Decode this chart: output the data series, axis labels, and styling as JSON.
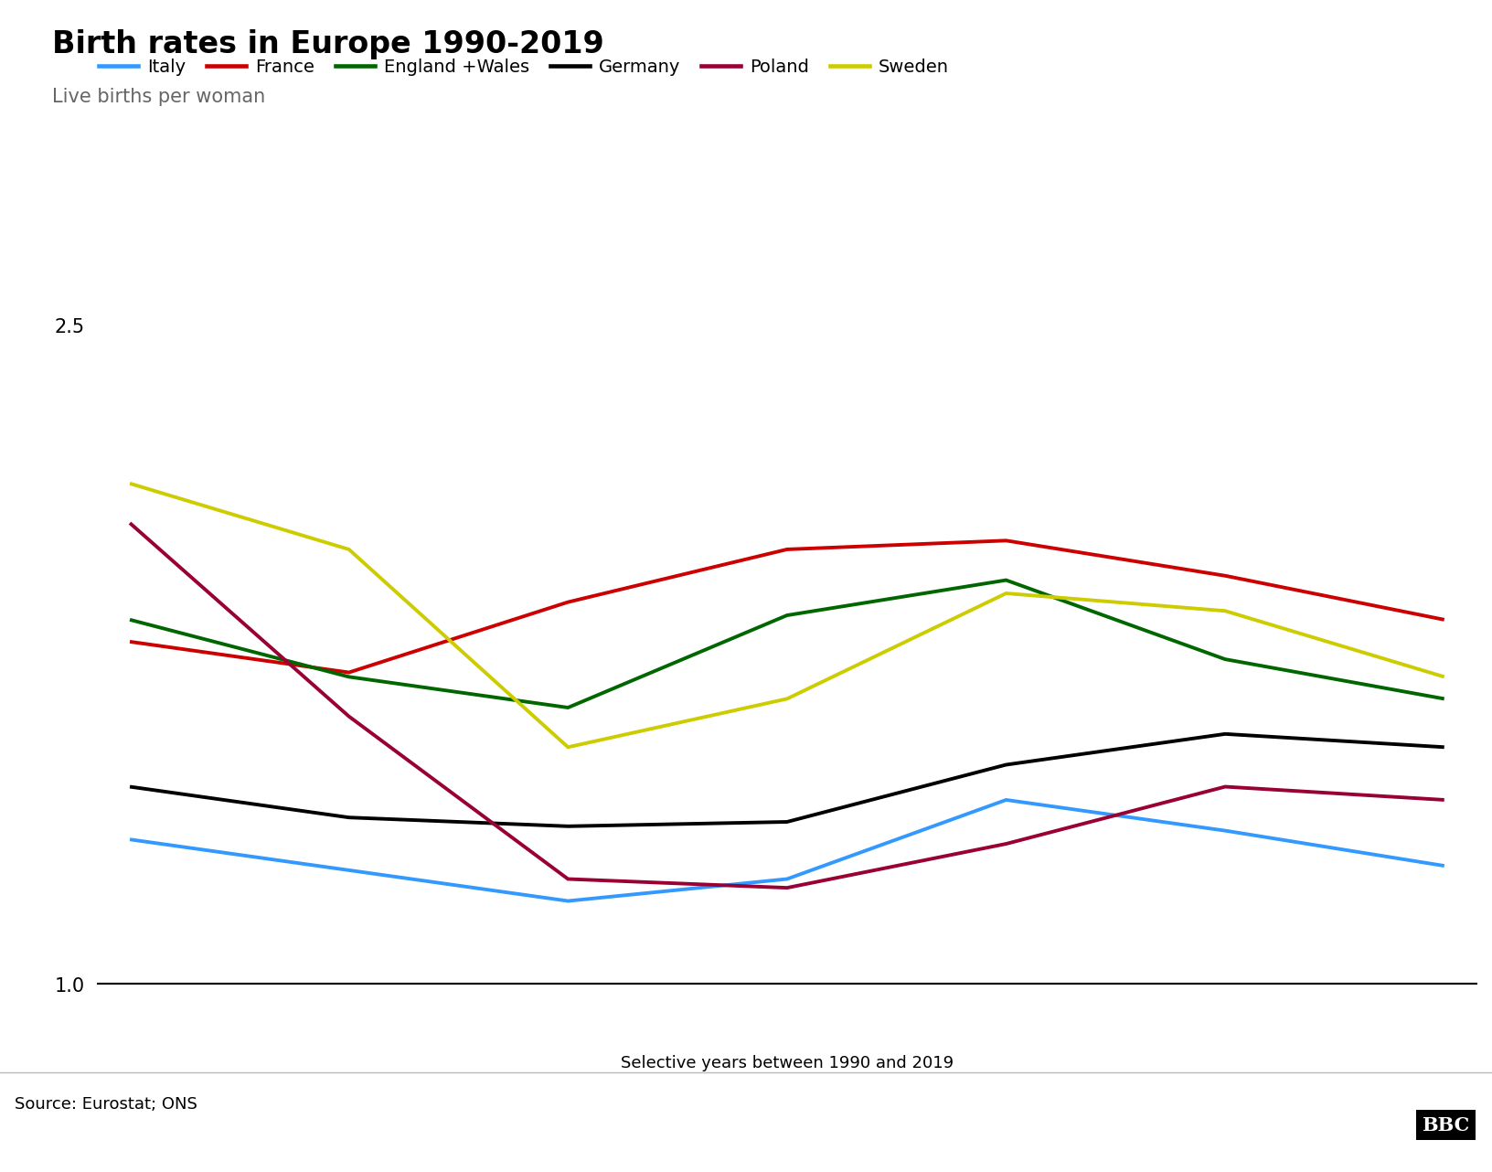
{
  "title": "Birth rates in Europe 1990-2019",
  "subtitle": "Live births per woman",
  "xlabel": "Selective years between 1990 and 2019",
  "source": "Source: Eurostat; ONS",
  "ylim": [
    1.0,
    2.6
  ],
  "yticks": [
    1.0,
    2.5
  ],
  "x_positions": [
    0,
    1,
    2,
    3,
    4,
    5,
    6
  ],
  "series": [
    {
      "label": "Italy",
      "color": "#3399FF",
      "values": [
        1.33,
        1.26,
        1.19,
        1.24,
        1.42,
        1.35,
        1.27
      ]
    },
    {
      "label": "France",
      "color": "#CC0000",
      "values": [
        1.78,
        1.71,
        1.87,
        1.99,
        2.01,
        1.93,
        1.83
      ]
    },
    {
      "label": "England +Wales",
      "color": "#006600",
      "values": [
        1.83,
        1.7,
        1.63,
        1.84,
        1.92,
        1.74,
        1.65
      ]
    },
    {
      "label": "Germany",
      "color": "#000000",
      "values": [
        1.45,
        1.38,
        1.36,
        1.37,
        1.5,
        1.57,
        1.54
      ]
    },
    {
      "label": "Poland",
      "color": "#990033",
      "values": [
        2.05,
        1.61,
        1.24,
        1.22,
        1.32,
        1.45,
        1.42
      ]
    },
    {
      "label": "Sweden",
      "color": "#CCCC00",
      "values": [
        2.14,
        1.99,
        1.54,
        1.65,
        1.89,
        1.85,
        1.7
      ]
    }
  ],
  "background_color": "#ffffff",
  "title_fontsize": 24,
  "subtitle_fontsize": 15,
  "legend_fontsize": 14,
  "tick_fontsize": 15,
  "source_fontsize": 13,
  "line_width": 2.8
}
